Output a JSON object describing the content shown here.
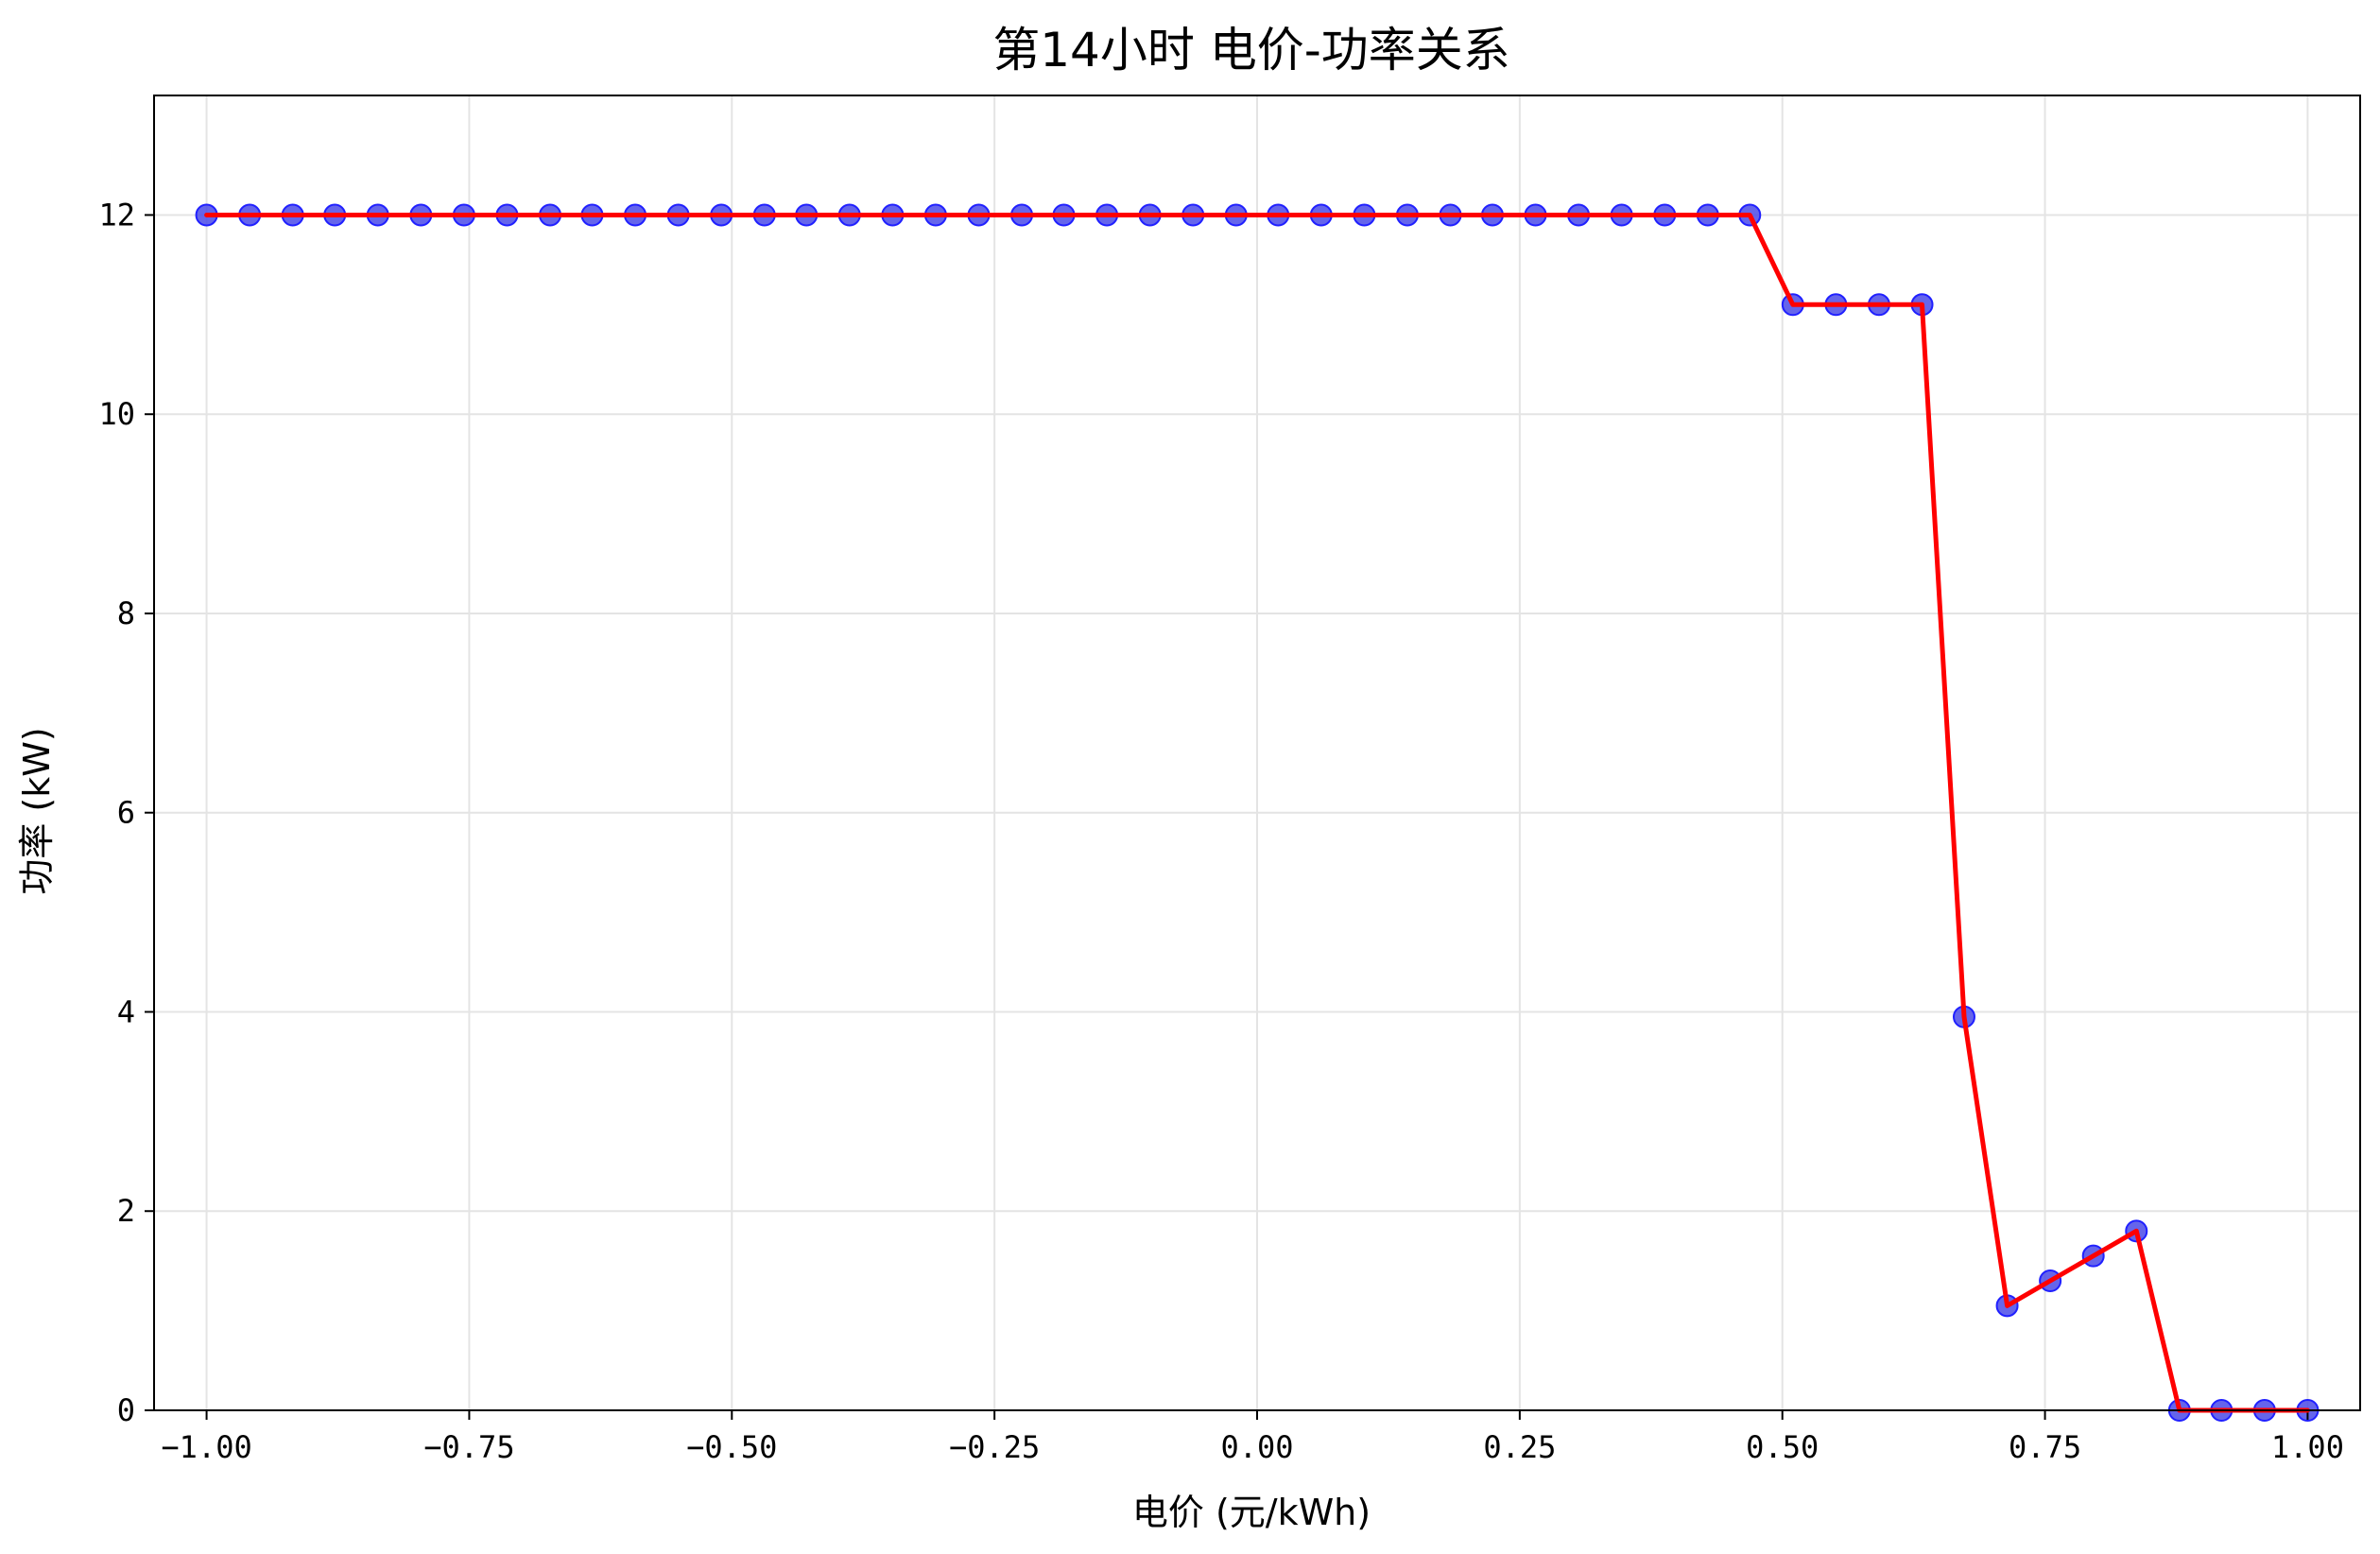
{
  "chart_data": {
    "type": "line",
    "title": "第14小时 电价-功率关系",
    "xlabel": "电价 (元/kWh)",
    "ylabel": "功率 (kW)",
    "xlim": [
      -1.05,
      1.05
    ],
    "ylim": [
      0,
      13.2
    ],
    "xticks": [
      -1.0,
      -0.75,
      -0.5,
      -0.25,
      0.0,
      0.25,
      0.5,
      0.75,
      1.0
    ],
    "xtick_labels": [
      "−1.00",
      "−0.75",
      "−0.50",
      "−0.25",
      "0.00",
      "0.25",
      "0.50",
      "0.75",
      "1.00"
    ],
    "yticks": [
      0,
      2,
      4,
      6,
      8,
      10,
      12
    ],
    "ytick_labels": [
      "0",
      "2",
      "4",
      "6",
      "8",
      "10",
      "12"
    ],
    "grid": true,
    "x": [
      -1.0,
      -0.959,
      -0.918,
      -0.878,
      -0.837,
      -0.796,
      -0.755,
      -0.714,
      -0.673,
      -0.633,
      -0.592,
      -0.551,
      -0.51,
      -0.469,
      -0.429,
      -0.388,
      -0.347,
      -0.306,
      -0.265,
      -0.224,
      -0.184,
      -0.143,
      -0.102,
      -0.061,
      -0.02,
      0.02,
      0.061,
      0.102,
      0.143,
      0.184,
      0.224,
      0.265,
      0.306,
      0.347,
      0.388,
      0.429,
      0.469,
      0.51,
      0.551,
      0.592,
      0.633,
      0.673,
      0.714,
      0.755,
      0.796,
      0.837,
      0.878,
      0.918,
      0.959,
      1.0
    ],
    "y": [
      12,
      12,
      12,
      12,
      12,
      12,
      12,
      12,
      12,
      12,
      12,
      12,
      12,
      12,
      12,
      12,
      12,
      12,
      12,
      12,
      12,
      12,
      12,
      12,
      12,
      12,
      12,
      12,
      12,
      12,
      12,
      12,
      12,
      12,
      12,
      12,
      12,
      11.1,
      11.1,
      11.1,
      11.1,
      3.95,
      1.05,
      1.3,
      1.55,
      1.8,
      0,
      0,
      0,
      0
    ],
    "colors": {
      "line": "#ff0000",
      "marker": "#4a4ae8",
      "marker_edge": "#2020ff",
      "grid": "#e4e4e4",
      "axes": "#000000"
    }
  }
}
